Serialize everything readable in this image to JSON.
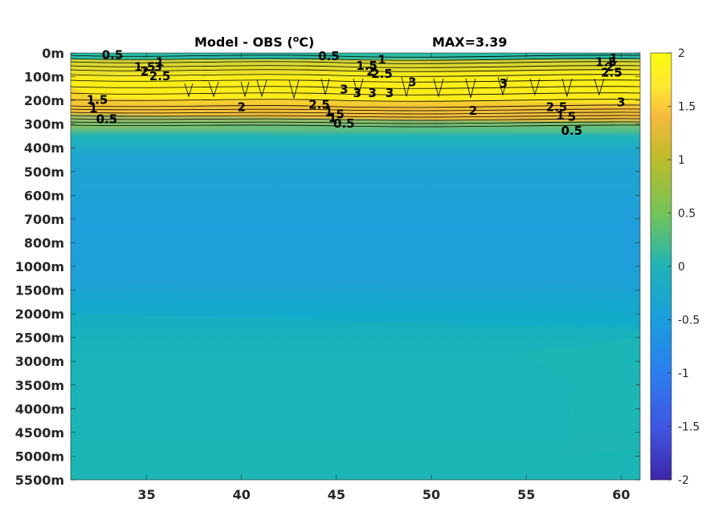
{
  "chart_data": {
    "type": "heatmap",
    "title": "Model - OBS (",
    "title_superscript": "o",
    "title_unit": "C)",
    "max_label": "MAX=3.39",
    "x_ticks": [
      35,
      40,
      45,
      50,
      55,
      60
    ],
    "xlim": [
      31,
      61
    ],
    "y_tick_labels": [
      "0m",
      "100m",
      "200m",
      "300m",
      "400m",
      "500m",
      "600m",
      "700m",
      "800m",
      "1000m",
      "1500m",
      "2000m",
      "2500m",
      "3000m",
      "3500m",
      "4000m",
      "4500m",
      "5000m",
      "5500m"
    ],
    "colorbar": {
      "ticks": [
        2,
        1.5,
        1,
        0.5,
        0,
        -0.5,
        -1,
        -1.5,
        -2
      ],
      "tick_labels": [
        "2",
        "1.5",
        "1",
        "0.5",
        "0",
        "-0.5",
        "-1",
        "-1.5",
        "-2"
      ],
      "clim": [
        -2,
        2
      ]
    },
    "contour_labels": [
      {
        "text": "0.5",
        "x": 33.2,
        "depth_index": 0.05
      },
      {
        "text": "1.5",
        "x": 34.9,
        "depth_index": 0.55
      },
      {
        "text": "1",
        "x": 35.7,
        "depth_index": 0.35
      },
      {
        "text": "3",
        "x": 35.6,
        "depth_index": 0.55
      },
      {
        "text": "2",
        "x": 34.9,
        "depth_index": 0.75
      },
      {
        "text": "2.5",
        "x": 35.7,
        "depth_index": 0.95
      },
      {
        "text": "1.5",
        "x": 32.4,
        "depth_index": 1.95
      },
      {
        "text": "1",
        "x": 32.2,
        "depth_index": 2.3
      },
      {
        "text": "0.5",
        "x": 32.9,
        "depth_index": 2.75
      },
      {
        "text": "2",
        "x": 40.0,
        "depth_index": 2.25
      },
      {
        "text": "0.5",
        "x": 44.6,
        "depth_index": 0.1
      },
      {
        "text": "1.5",
        "x": 46.6,
        "depth_index": 0.5
      },
      {
        "text": "1",
        "x": 47.4,
        "depth_index": 0.25
      },
      {
        "text": "2",
        "x": 46.8,
        "depth_index": 0.75
      },
      {
        "text": "2.5",
        "x": 47.4,
        "depth_index": 0.85
      },
      {
        "text": "3",
        "x": 45.4,
        "depth_index": 1.5
      },
      {
        "text": "3",
        "x": 46.1,
        "depth_index": 1.65
      },
      {
        "text": "3",
        "x": 46.9,
        "depth_index": 1.65
      },
      {
        "text": "3",
        "x": 47.8,
        "depth_index": 1.65
      },
      {
        "text": "3",
        "x": 49.0,
        "depth_index": 1.2
      },
      {
        "text": "3",
        "x": 53.8,
        "depth_index": 1.25
      },
      {
        "text": "2.5",
        "x": 44.1,
        "depth_index": 2.15
      },
      {
        "text": "1",
        "x": 44.6,
        "depth_index": 2.45
      },
      {
        "text": "5",
        "x": 45.2,
        "depth_index": 2.55
      },
      {
        "text": "1",
        "x": 44.8,
        "depth_index": 2.7
      },
      {
        "text": "0.5",
        "x": 45.4,
        "depth_index": 2.95
      },
      {
        "text": "2",
        "x": 52.2,
        "depth_index": 2.4
      },
      {
        "text": "2.5",
        "x": 56.6,
        "depth_index": 2.25
      },
      {
        "text": "3",
        "x": 60.0,
        "depth_index": 2.05
      },
      {
        "text": "1",
        "x": 56.8,
        "depth_index": 2.6
      },
      {
        "text": "5",
        "x": 57.4,
        "depth_index": 2.65
      },
      {
        "text": "0.5",
        "x": 57.4,
        "depth_index": 3.25
      },
      {
        "text": "1.5",
        "x": 59.2,
        "depth_index": 0.35
      },
      {
        "text": "1",
        "x": 59.6,
        "depth_index": 0.2
      },
      {
        "text": "2",
        "x": 59.4,
        "depth_index": 0.55
      },
      {
        "text": "2.5",
        "x": 59.5,
        "depth_index": 0.8
      }
    ]
  }
}
